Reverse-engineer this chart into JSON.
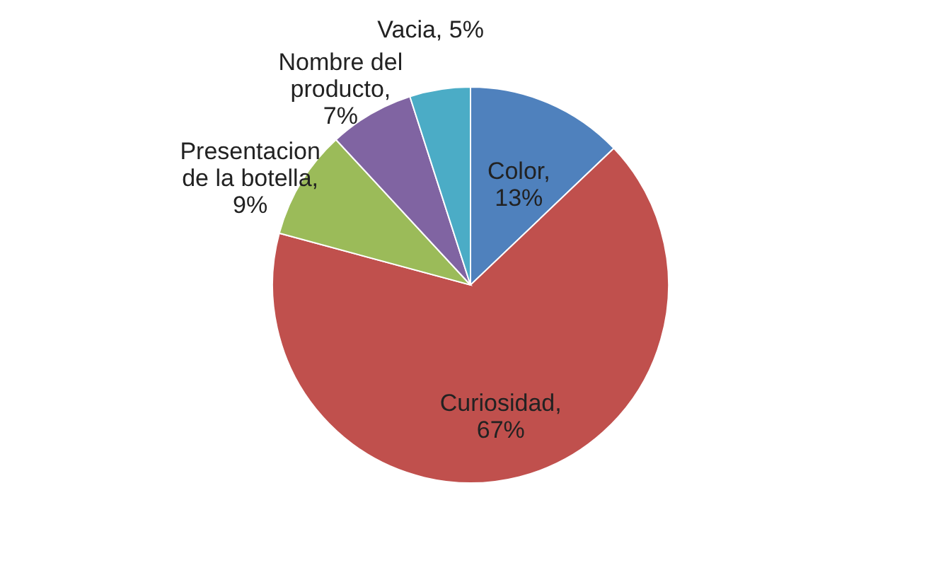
{
  "chart_data": {
    "type": "pie",
    "categories": [
      "Color",
      "Curiosidad",
      "Presentacion de la botella",
      "Nombre del producto",
      "Vacia"
    ],
    "values": [
      13,
      67,
      9,
      7,
      5
    ],
    "colors": [
      "#4f81bd",
      "#c0504d",
      "#9bbb59",
      "#8064a2",
      "#4bacc6"
    ],
    "value_labels": [
      ",\n13%",
      ",\n67%",
      ",\n9%",
      ",\n7%",
      ", 5%"
    ],
    "legend": false
  }
}
